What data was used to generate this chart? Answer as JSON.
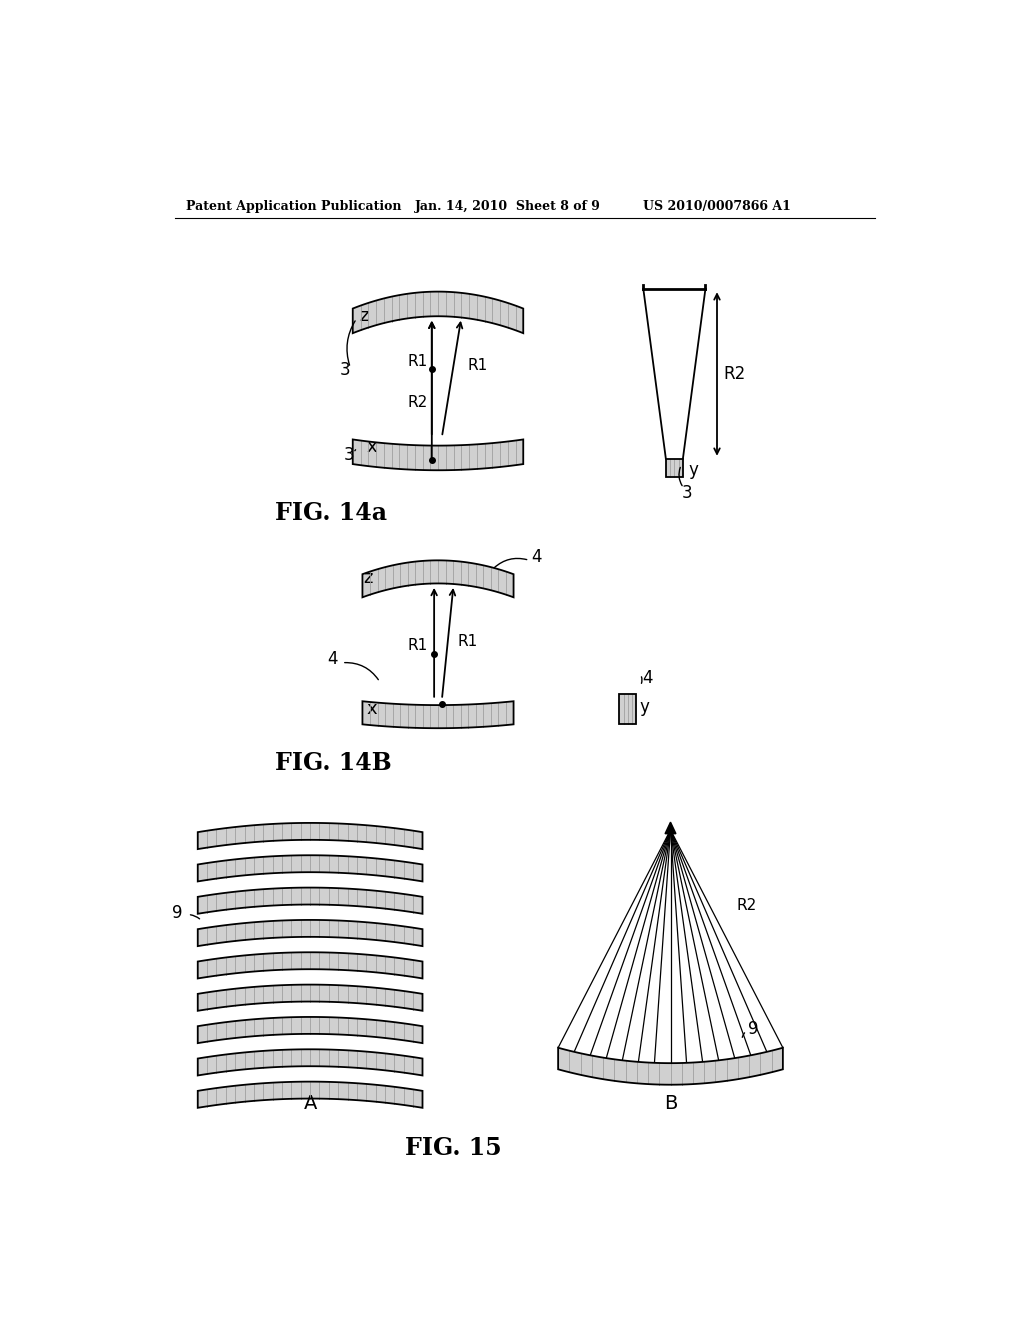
{
  "bg_color": "#ffffff",
  "header_left": "Patent Application Publication",
  "header_mid": "Jan. 14, 2010  Sheet 8 of 9",
  "header_right": "US 2010/0007866 A1",
  "fig14a_label": "FIG. 14a",
  "fig14b_label": "FIG. 14B",
  "fig15_label": "FIG. 15",
  "text_color": "#000000"
}
